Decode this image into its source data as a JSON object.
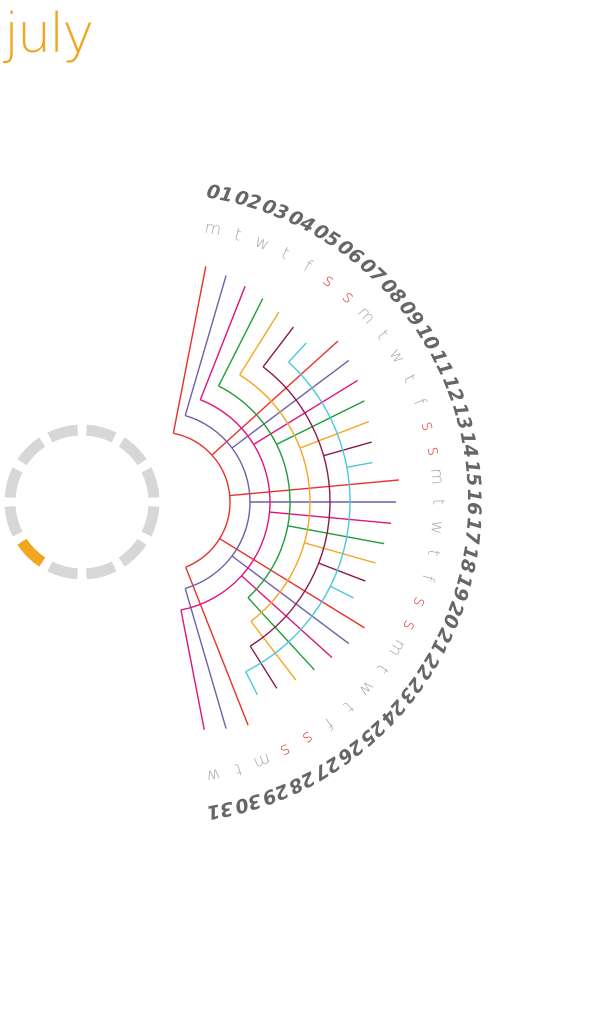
{
  "month": "july",
  "colors": {
    "title": "#f2a51f",
    "day_number": "#666666",
    "weekday": "#aaaaaa",
    "weekend": "#e8312c",
    "ring_track": "#d7d7d7",
    "ring_active": "#f2a51f",
    "lines": [
      "#e8312c",
      "#6e5fa6",
      "#e0157a",
      "#1e9c3a",
      "#f6a623",
      "#8c1a4f",
      "#4ec8d8"
    ]
  },
  "progress_ring": {
    "segments": 12,
    "active_segment": 7
  },
  "days": [
    {
      "num": "01",
      "wd": "m"
    },
    {
      "num": "02",
      "wd": "t"
    },
    {
      "num": "03",
      "wd": "w"
    },
    {
      "num": "04",
      "wd": "t"
    },
    {
      "num": "05",
      "wd": "f"
    },
    {
      "num": "06",
      "wd": "s",
      "weekend": true
    },
    {
      "num": "07",
      "wd": "s",
      "weekend": true
    },
    {
      "num": "08",
      "wd": "m"
    },
    {
      "num": "09",
      "wd": "t"
    },
    {
      "num": "10",
      "wd": "w"
    },
    {
      "num": "11",
      "wd": "t"
    },
    {
      "num": "12",
      "wd": "f"
    },
    {
      "num": "13",
      "wd": "s",
      "weekend": true
    },
    {
      "num": "14",
      "wd": "s",
      "weekend": true
    },
    {
      "num": "15",
      "wd": "m"
    },
    {
      "num": "16",
      "wd": "t"
    },
    {
      "num": "17",
      "wd": "w"
    },
    {
      "num": "18",
      "wd": "t"
    },
    {
      "num": "19",
      "wd": "f"
    },
    {
      "num": "20",
      "wd": "s",
      "weekend": true
    },
    {
      "num": "21",
      "wd": "s",
      "weekend": true
    },
    {
      "num": "22",
      "wd": "m"
    },
    {
      "num": "23",
      "wd": "t"
    },
    {
      "num": "24",
      "wd": "w"
    },
    {
      "num": "25",
      "wd": "t"
    },
    {
      "num": "26",
      "wd": "f"
    },
    {
      "num": "27",
      "wd": "s",
      "weekend": true
    },
    {
      "num": "28",
      "wd": "s",
      "weekend": true
    },
    {
      "num": "29",
      "wd": "m"
    },
    {
      "num": "30",
      "wd": "t"
    },
    {
      "num": "31",
      "wd": "w"
    }
  ]
}
